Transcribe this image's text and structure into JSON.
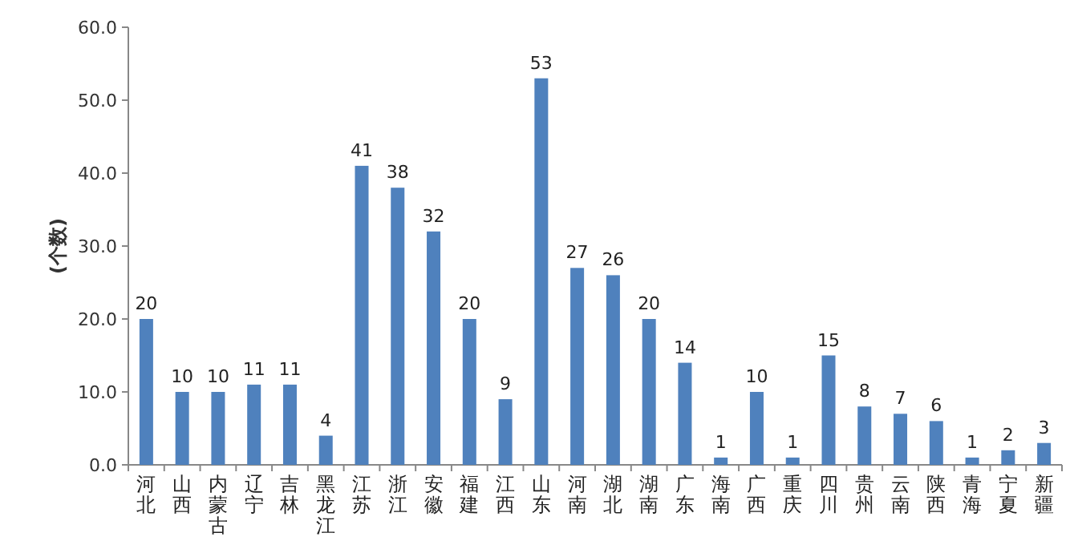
{
  "chart_data": {
    "type": "bar",
    "ylabel": "(个数)",
    "categories": [
      "河北",
      "山西",
      "内蒙古",
      "辽宁",
      "吉林",
      "黑龙江",
      "江苏",
      "浙江",
      "安徽",
      "福建",
      "江西",
      "山东",
      "河南",
      "湖北",
      "湖南",
      "广东",
      "海南",
      "广西",
      "重庆",
      "四川",
      "贵州",
      "云南",
      "陕西",
      "青海",
      "宁夏",
      "新疆"
    ],
    "values": [
      20,
      10,
      10,
      11,
      11,
      4,
      41,
      38,
      32,
      20,
      9,
      53,
      27,
      26,
      20,
      14,
      1,
      10,
      1,
      15,
      8,
      7,
      6,
      1,
      2,
      3
    ],
    "color": "#4f81bd",
    "data_labels": true,
    "ylim": [
      0,
      60
    ],
    "yticks": [
      {
        "value": 0,
        "label": "0.0"
      },
      {
        "value": 10,
        "label": "10.0"
      },
      {
        "value": 20,
        "label": "20.0"
      },
      {
        "value": 30,
        "label": "30.0"
      },
      {
        "value": 40,
        "label": "40.0"
      },
      {
        "value": 50,
        "label": "50.0"
      },
      {
        "value": 60,
        "label": "60.0"
      }
    ]
  }
}
